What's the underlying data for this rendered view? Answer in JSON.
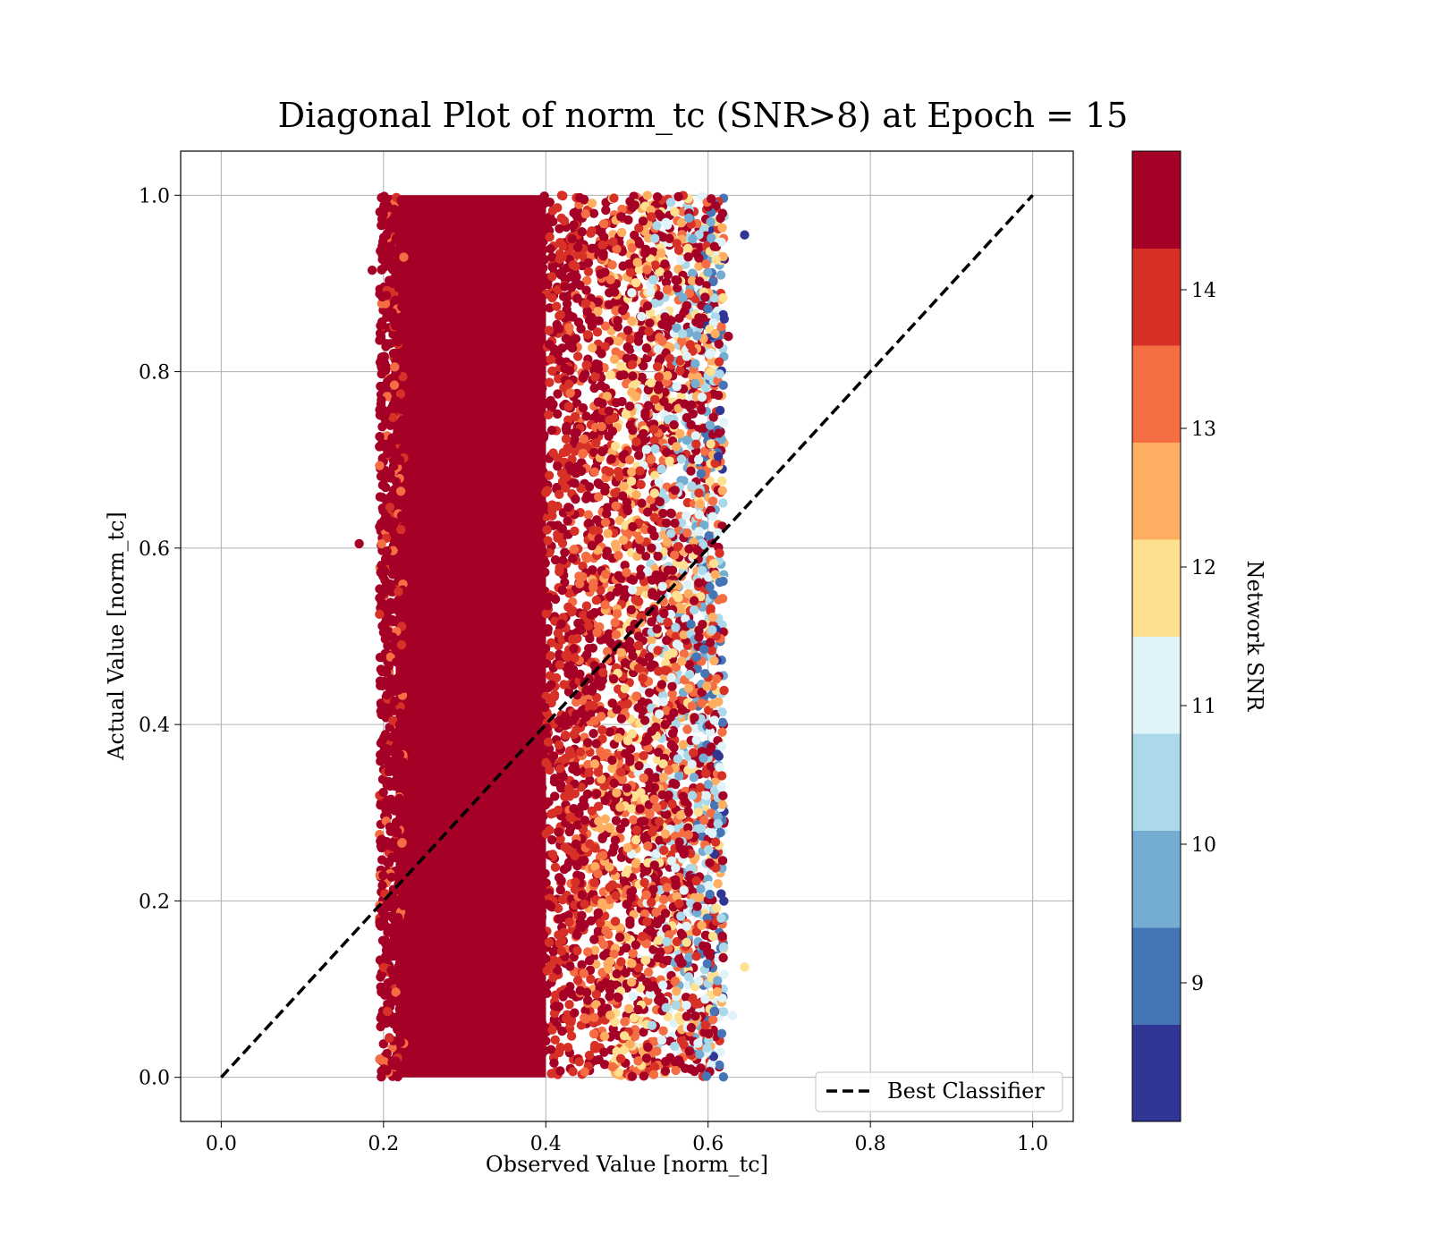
{
  "chart_data": {
    "type": "scatter",
    "title": "Diagonal Plot of norm_tc (SNR>8) at Epoch = 15",
    "xlabel": "Observed Value [norm_tc]",
    "ylabel": "Actual Value [norm_tc]",
    "xlim": [
      -0.05,
      1.05
    ],
    "ylim": [
      -0.05,
      1.05
    ],
    "x_ticks": [
      "0.0",
      "0.2",
      "0.4",
      "0.6",
      "0.8",
      "1.0"
    ],
    "y_ticks": [
      "0.0",
      "0.2",
      "0.4",
      "0.6",
      "0.8",
      "1.0"
    ],
    "grid": true,
    "reference_line": {
      "name": "Best Classifier",
      "x": [
        0,
        1
      ],
      "y": [
        0,
        1
      ],
      "style": "dashed",
      "color": "#000000"
    },
    "legend_placement": "lower-right",
    "scatter_summary": {
      "x_range_dense": [
        0.2,
        0.4
      ],
      "x_range_sparse": [
        0.4,
        0.62
      ],
      "y_range": [
        0.0,
        1.0
      ],
      "outliers": [
        [
          0.17,
          0.605
        ],
        [
          0.186,
          0.915
        ],
        [
          0.645,
          0.955
        ],
        [
          0.645,
          0.125
        ],
        [
          0.625,
          0.84
        ],
        [
          0.63,
          0.07
        ]
      ]
    },
    "colorbar": {
      "label": "Network SNR",
      "range": [
        8,
        15
      ],
      "tick_values": [
        9,
        10,
        11,
        12,
        13,
        14
      ],
      "tick_labels": [
        "9",
        "10",
        "11",
        "12",
        "13",
        "14"
      ],
      "colors": [
        "#313695",
        "#4575b4",
        "#74add1",
        "#abd9e9",
        "#e0f3f8",
        "#fee090",
        "#fdae61",
        "#f46d43",
        "#d73027",
        "#a50026"
      ]
    }
  }
}
